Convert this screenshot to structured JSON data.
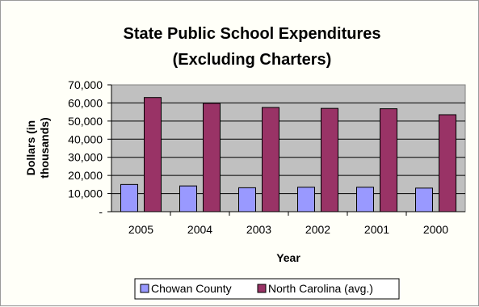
{
  "chart_data": {
    "type": "bar",
    "title_line1": "State Public School Expenditures",
    "title_line2": "(Excluding Charters)",
    "xlabel": "Year",
    "ylabel_line1": "Dollars (in",
    "ylabel_line2": "thousands)",
    "categories": [
      "2005",
      "2004",
      "2003",
      "2002",
      "2001",
      "2000"
    ],
    "ytick_labels": [
      "-",
      "10,000",
      "20,000",
      "30,000",
      "40,000",
      "50,000",
      "60,000",
      "70,000"
    ],
    "ylim": [
      0,
      70000
    ],
    "grid": true,
    "legend_position": "bottom",
    "plot_background": "#c0c0c0",
    "series": [
      {
        "name": "Chowan County",
        "color": "#9999ff",
        "values": [
          15000,
          14200,
          13200,
          13500,
          13500,
          13000
        ]
      },
      {
        "name": "North Carolina (avg.)",
        "color": "#993366",
        "values": [
          63000,
          59800,
          57500,
          57000,
          56800,
          53500
        ]
      }
    ]
  }
}
